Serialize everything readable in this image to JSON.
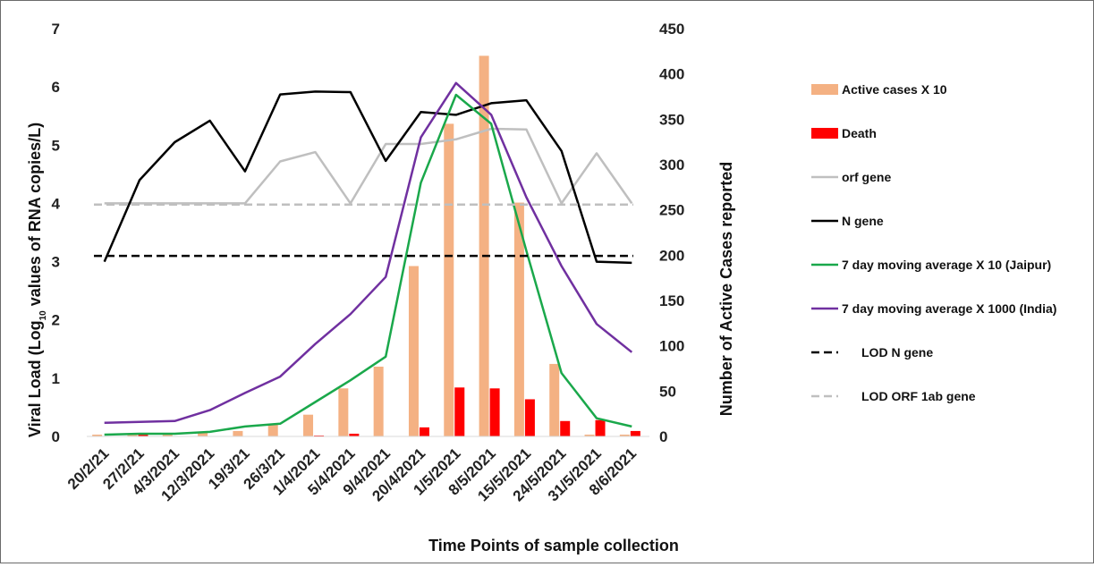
{
  "chart_data": {
    "type": "bar+line",
    "categories": [
      "20/2/21",
      "27/2/21",
      "4/3/2021",
      "12/3/2021",
      "19/3/21",
      "26/3/21",
      "1/4/2021",
      "5/4/2021",
      "9/4/2021",
      "20/4/2021",
      "1/5/2021",
      "8/5/2021",
      "15/5/2021",
      "24/5/2021",
      "31/5/2021",
      "8/6/2021"
    ],
    "xlabel": "Time Points of sample collection",
    "ylabel_left": "Viral Load (Log",
    "ylabel_left_sub": "10",
    "ylabel_left_rest": " values of RNA copies/L)",
    "ylabel_right": "Number of Active Cases reported",
    "yleft_lim": [
      0,
      7
    ],
    "yleft_ticks": [
      "0",
      "1",
      "2",
      "3",
      "4",
      "5",
      "6",
      "7"
    ],
    "yright_lim": [
      0,
      450
    ],
    "yright_ticks": [
      "0",
      "50",
      "100",
      "150",
      "200",
      "250",
      "300",
      "350",
      "400",
      "450"
    ],
    "bar_series": [
      {
        "name": "Active cases X 10",
        "axis": "right",
        "color": "#f4b183",
        "values": [
          2,
          2,
          2,
          5,
          6,
          14,
          24,
          53,
          77,
          188,
          345,
          420,
          258,
          80,
          2,
          2
        ]
      },
      {
        "name": "Death",
        "axis": "right",
        "color": "#ff0000",
        "values": [
          0,
          2,
          0,
          0,
          0,
          0,
          1,
          3,
          0,
          10,
          54,
          53,
          41,
          17,
          18,
          6
        ]
      }
    ],
    "line_series": [
      {
        "name": "orf gene",
        "axis": "left",
        "color": "#bfbfbf",
        "dash": false,
        "values": [
          4.0,
          4.0,
          4.0,
          4.0,
          4.0,
          4.72,
          4.88,
          4.0,
          5.02,
          5.02,
          5.1,
          5.28,
          5.27,
          4.0,
          4.86,
          4.0
        ]
      },
      {
        "name": "N gene",
        "axis": "left",
        "color": "#000000",
        "dash": false,
        "values": [
          3.0,
          4.4,
          5.05,
          5.42,
          4.55,
          5.87,
          5.92,
          5.91,
          4.73,
          5.57,
          5.52,
          5.72,
          5.77,
          4.9,
          3.0,
          2.98
        ]
      },
      {
        "name": "7 day moving average X 10 (Jaipur)",
        "axis": "right",
        "color": "#1aa84b",
        "dash": false,
        "values": [
          2,
          3,
          3,
          5,
          11,
          14,
          38,
          62,
          88,
          280,
          377,
          345,
          205,
          70,
          20,
          11
        ]
      },
      {
        "name": "7 day moving average X 1000 (India)",
        "axis": "right",
        "color": "#7030a0",
        "dash": false,
        "values": [
          15,
          16,
          17,
          29,
          48,
          66,
          102,
          135,
          176,
          330,
          390,
          355,
          264,
          188,
          124,
          93
        ]
      },
      {
        "name": "LOD N gene",
        "axis": "left",
        "color": "#000000",
        "dash": true,
        "values": [
          3.1,
          3.1,
          3.1,
          3.1,
          3.1,
          3.1,
          3.1,
          3.1,
          3.1,
          3.1,
          3.1,
          3.1,
          3.1,
          3.1,
          3.1,
          3.1
        ]
      },
      {
        "name": "LOD ORF 1ab gene",
        "axis": "left",
        "color": "#bfbfbf",
        "dash": true,
        "values": [
          3.98,
          3.98,
          3.98,
          3.98,
          3.98,
          3.98,
          3.98,
          3.98,
          3.98,
          3.98,
          3.98,
          3.98,
          3.98,
          3.98,
          3.98,
          3.98
        ]
      }
    ],
    "legend": {
      "position": "right",
      "items": [
        {
          "label": "Active cases X 10",
          "kind": "bar",
          "color": "#f4b183"
        },
        {
          "label": "Death",
          "kind": "bar",
          "color": "#ff0000"
        },
        {
          "label": "orf gene",
          "kind": "line",
          "color": "#bfbfbf",
          "dash": false
        },
        {
          "label": "N gene",
          "kind": "line",
          "color": "#000000",
          "dash": false
        },
        {
          "label": "7 day moving average X 10 (Jaipur)",
          "kind": "line",
          "color": "#1aa84b",
          "dash": false
        },
        {
          "label": "7 day moving average X 1000 (India)",
          "kind": "line",
          "color": "#7030a0",
          "dash": false
        },
        {
          "label": "LOD N gene",
          "kind": "line",
          "color": "#000000",
          "dash": true
        },
        {
          "label": "LOD ORF 1ab gene",
          "kind": "line",
          "color": "#bfbfbf",
          "dash": true
        }
      ]
    },
    "grid": false
  }
}
